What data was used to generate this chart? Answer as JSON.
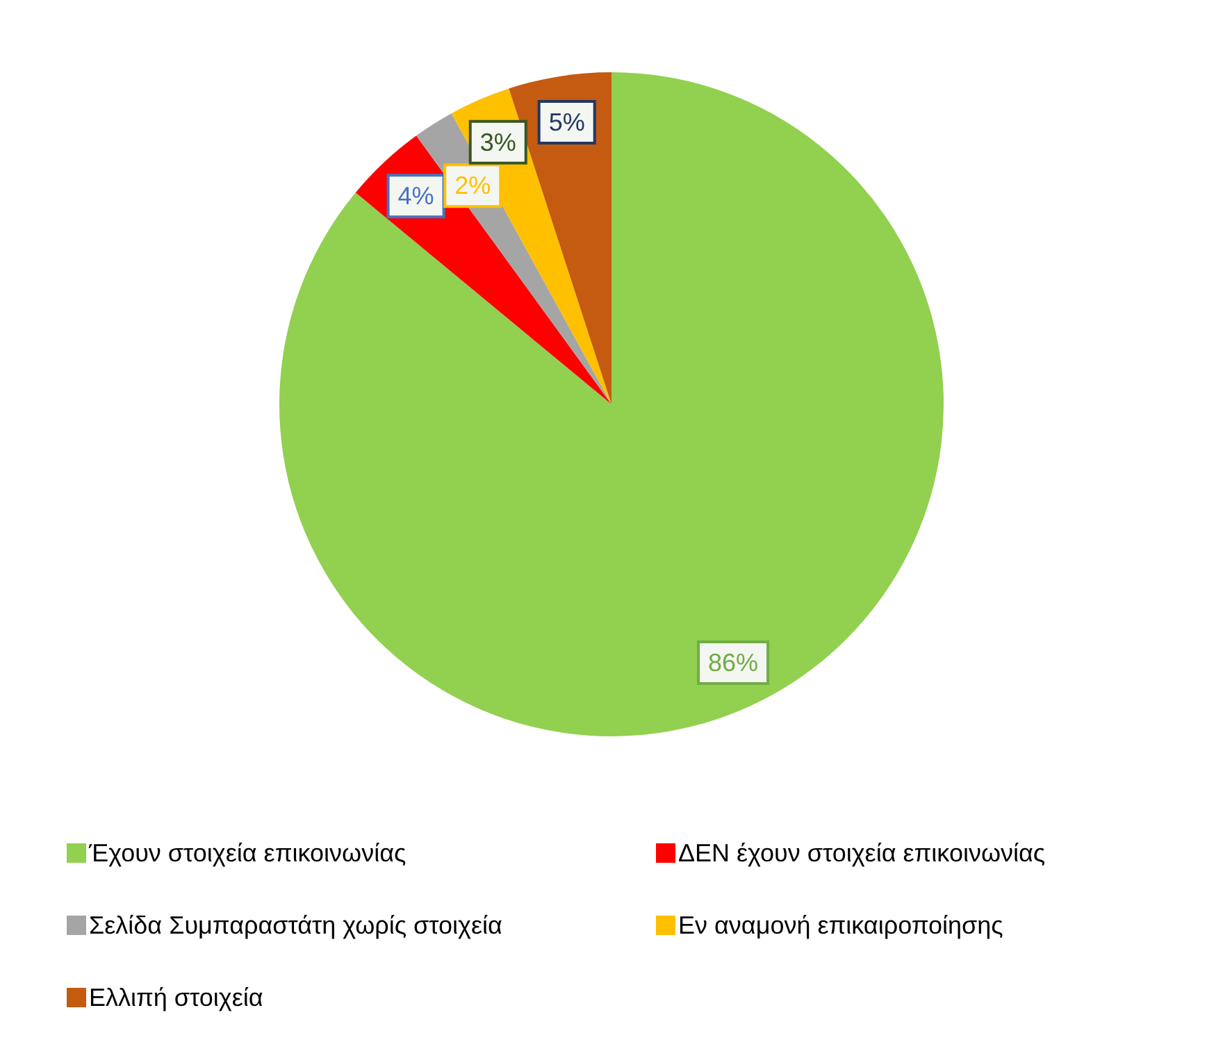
{
  "chart_data": {
    "type": "pie",
    "categories": [
      "Έχουν στοιχεία επικοινωνίας",
      "ΔΕΝ έχουν στοιχεία επικοινωνίας",
      "Σελίδα Συμπαραστάτη χωρίς στοιχεία",
      "Εν αναμονή επικαιροποίησης",
      "Ελλιπή στοιχεία"
    ],
    "values": [
      86,
      4,
      2,
      3,
      5
    ],
    "value_labels": [
      "86%",
      "4%",
      "2%",
      "3%",
      "5%"
    ],
    "colors": [
      "#92d050",
      "#ff0000",
      "#a5a5a5",
      "#ffc000",
      "#c55a11"
    ],
    "legend": "bottom"
  }
}
